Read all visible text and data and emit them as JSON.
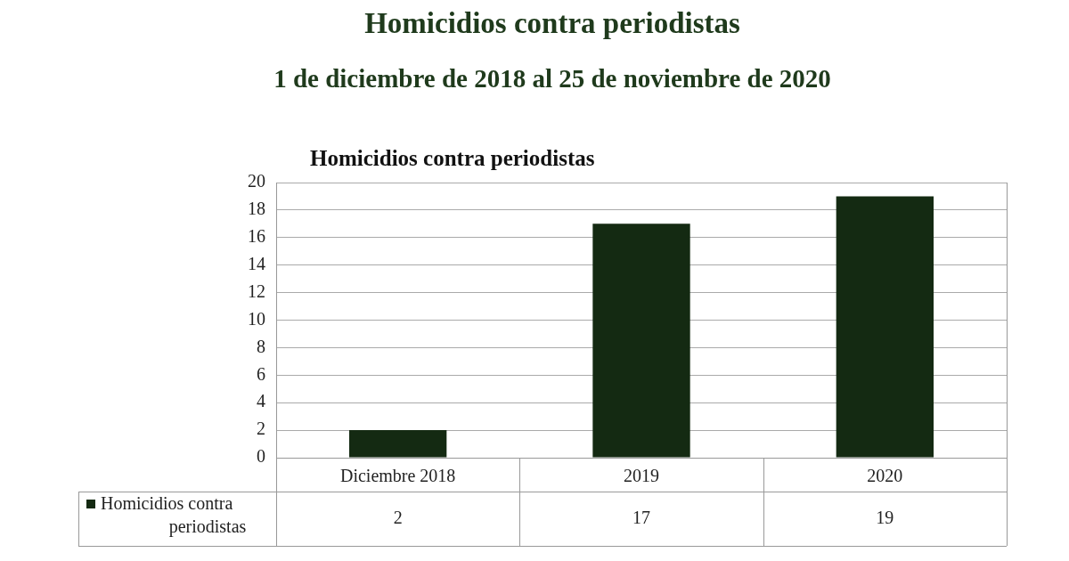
{
  "chart_data": {
    "type": "bar",
    "title": "Homicidios contra periodistas",
    "subtitle": "1 de diciembre de 2018 al 25 de noviembre de 2020",
    "annotations": [
      "Homicidios contra periodistas"
    ],
    "categories": [
      "Diciembre 2018",
      "2019",
      "2020"
    ],
    "series": [
      {
        "name": "Homicidios contra periodistas",
        "color": "#142a12",
        "values": [
          2,
          17,
          19
        ]
      }
    ],
    "ylim": [
      0,
      20
    ],
    "yticks": [
      0,
      2,
      4,
      6,
      8,
      10,
      12,
      14,
      16,
      18,
      20
    ],
    "grid": "y",
    "data_labels": true,
    "legend": "bottom left"
  }
}
